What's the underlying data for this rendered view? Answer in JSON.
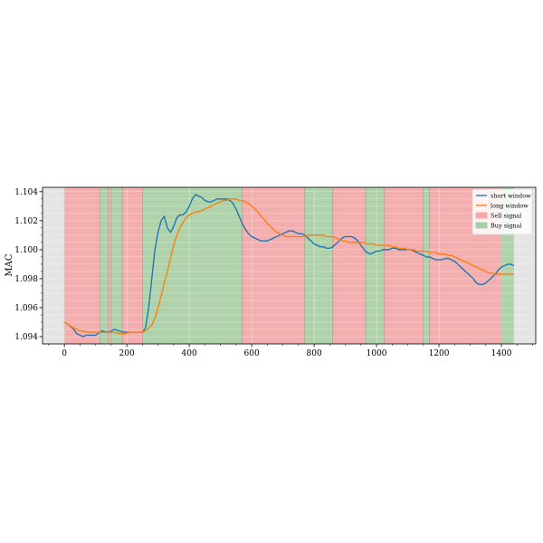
{
  "chart_data": {
    "type": "line",
    "title": "",
    "xlabel": "",
    "ylabel": "MAC",
    "xlim": [
      -70,
      1510
    ],
    "ylim": [
      1.0935,
      1.1043
    ],
    "xticks": [
      0,
      200,
      400,
      600,
      800,
      1000,
      1200,
      1400
    ],
    "yticks": [
      1.094,
      1.096,
      1.098,
      1.1,
      1.102,
      1.104
    ],
    "ytick_labels": [
      "1.094",
      "1.096",
      "1.098",
      "1.100",
      "1.102",
      "1.104"
    ],
    "grid": true,
    "background": "#e5e5e5",
    "data_extent": [
      0,
      1440
    ],
    "legend": {
      "placement": "top-right",
      "entries": [
        {
          "label": "short window",
          "kind": "line",
          "color": "#1f77b4"
        },
        {
          "label": "long window",
          "kind": "line",
          "color": "#ff7f0e"
        },
        {
          "label": "Sell signal",
          "kind": "patch",
          "color": "#f4a9a8"
        },
        {
          "label": "Buy signal",
          "kind": "patch",
          "color": "#a9cfa4"
        }
      ]
    },
    "signal_colors": {
      "sell": "#f4a9a8",
      "buy": "#a9cfa4"
    },
    "signal_regions": [
      {
        "type": "sell",
        "start": 0,
        "end": 115
      },
      {
        "type": "buy",
        "start": 115,
        "end": 140
      },
      {
        "type": "sell",
        "start": 140,
        "end": 150
      },
      {
        "type": "buy",
        "start": 150,
        "end": 185
      },
      {
        "type": "sell",
        "start": 185,
        "end": 250
      },
      {
        "type": "buy",
        "start": 250,
        "end": 570
      },
      {
        "type": "sell",
        "start": 570,
        "end": 770
      },
      {
        "type": "buy",
        "start": 770,
        "end": 860
      },
      {
        "type": "sell",
        "start": 860,
        "end": 965
      },
      {
        "type": "buy",
        "start": 965,
        "end": 1025
      },
      {
        "type": "sell",
        "start": 1025,
        "end": 1150
      },
      {
        "type": "buy",
        "start": 1150,
        "end": 1170
      },
      {
        "type": "sell",
        "start": 1170,
        "end": 1400
      },
      {
        "type": "buy",
        "start": 1400,
        "end": 1440
      }
    ],
    "series": [
      {
        "name": "short window",
        "color": "#1f77b4",
        "x": [
          0,
          15,
          30,
          40,
          50,
          60,
          70,
          80,
          100,
          120,
          140,
          150,
          160,
          175,
          190,
          210,
          230,
          250,
          260,
          270,
          280,
          290,
          300,
          310,
          320,
          330,
          340,
          350,
          360,
          370,
          380,
          390,
          400,
          410,
          420,
          430,
          440,
          450,
          460,
          470,
          480,
          490,
          500,
          510,
          520,
          530,
          540,
          550,
          560,
          570,
          580,
          590,
          600,
          610,
          620,
          630,
          640,
          650,
          660,
          670,
          680,
          690,
          700,
          710,
          720,
          730,
          740,
          750,
          760,
          770,
          780,
          790,
          800,
          810,
          820,
          830,
          840,
          850,
          860,
          870,
          880,
          890,
          900,
          910,
          920,
          930,
          940,
          950,
          960,
          970,
          980,
          990,
          1000,
          1010,
          1020,
          1030,
          1040,
          1050,
          1060,
          1070,
          1080,
          1090,
          1100,
          1110,
          1120,
          1130,
          1140,
          1150,
          1160,
          1170,
          1180,
          1190,
          1200,
          1210,
          1220,
          1230,
          1240,
          1250,
          1260,
          1270,
          1280,
          1290,
          1300,
          1310,
          1320,
          1330,
          1340,
          1350,
          1360,
          1370,
          1380,
          1390,
          1400,
          1410,
          1420,
          1430,
          1440
        ],
        "values": [
          1.095,
          1.0948,
          1.0945,
          1.0942,
          1.0941,
          1.094,
          1.0941,
          1.0941,
          1.0941,
          1.0944,
          1.0943,
          1.0944,
          1.0945,
          1.0944,
          1.0943,
          1.0943,
          1.0943,
          1.0943,
          1.0946,
          1.096,
          1.098,
          1.1,
          1.1012,
          1.102,
          1.1023,
          1.1015,
          1.1012,
          1.1016,
          1.1022,
          1.1024,
          1.1024,
          1.1026,
          1.103,
          1.1035,
          1.1038,
          1.1037,
          1.1036,
          1.1034,
          1.1033,
          1.1033,
          1.1034,
          1.1035,
          1.1035,
          1.1035,
          1.1035,
          1.1034,
          1.1032,
          1.1028,
          1.1023,
          1.1018,
          1.1014,
          1.1011,
          1.1009,
          1.1008,
          1.1007,
          1.1006,
          1.1006,
          1.1006,
          1.1007,
          1.1008,
          1.1009,
          1.101,
          1.1011,
          1.1012,
          1.1013,
          1.1013,
          1.1012,
          1.1011,
          1.1011,
          1.101,
          1.1008,
          1.1006,
          1.1004,
          1.1003,
          1.1002,
          1.1002,
          1.1001,
          1.1001,
          1.1002,
          1.1004,
          1.1006,
          1.1008,
          1.1009,
          1.1009,
          1.1009,
          1.1008,
          1.1006,
          1.1003,
          1.1,
          1.0998,
          1.0997,
          1.0998,
          1.0999,
          1.0999,
          1.1,
          1.1,
          1.1,
          1.1001,
          1.1001,
          1.1,
          1.1,
          1.1,
          1.1,
          1.1,
          1.0999,
          1.0998,
          1.0997,
          1.0996,
          1.0995,
          1.0995,
          1.0994,
          1.0993,
          1.0993,
          1.0993,
          1.0994,
          1.0994,
          1.0993,
          1.0992,
          1.099,
          1.0988,
          1.0986,
          1.0984,
          1.0982,
          1.098,
          1.0977,
          1.0976,
          1.0976,
          1.0977,
          1.0979,
          1.0981,
          1.0983,
          1.0986,
          1.0988,
          1.0989,
          1.099,
          1.099,
          1.0989
        ]
      },
      {
        "name": "long window",
        "color": "#ff7f0e",
        "x": [
          0,
          15,
          30,
          40,
          50,
          60,
          70,
          80,
          100,
          120,
          140,
          150,
          160,
          175,
          190,
          210,
          230,
          250,
          260,
          270,
          280,
          290,
          300,
          310,
          320,
          330,
          340,
          350,
          360,
          370,
          380,
          390,
          400,
          410,
          420,
          430,
          440,
          450,
          460,
          470,
          480,
          490,
          500,
          510,
          520,
          530,
          540,
          550,
          560,
          570,
          580,
          590,
          600,
          610,
          620,
          630,
          640,
          650,
          660,
          670,
          680,
          690,
          700,
          710,
          720,
          730,
          740,
          750,
          760,
          770,
          780,
          790,
          800,
          810,
          820,
          830,
          840,
          850,
          860,
          870,
          880,
          890,
          900,
          910,
          920,
          930,
          940,
          950,
          960,
          970,
          980,
          990,
          1000,
          1010,
          1020,
          1030,
          1040,
          1050,
          1060,
          1070,
          1080,
          1090,
          1100,
          1110,
          1120,
          1130,
          1140,
          1150,
          1160,
          1170,
          1180,
          1190,
          1200,
          1210,
          1220,
          1230,
          1240,
          1250,
          1260,
          1270,
          1280,
          1290,
          1300,
          1310,
          1320,
          1330,
          1340,
          1350,
          1360,
          1370,
          1380,
          1390,
          1400,
          1410,
          1420,
          1430,
          1440
        ],
        "values": [
          1.095,
          1.0948,
          1.0946,
          1.0945,
          1.0944,
          1.0944,
          1.0943,
          1.0943,
          1.0943,
          1.0943,
          1.0943,
          1.0943,
          1.0943,
          1.0942,
          1.0942,
          1.0943,
          1.0943,
          1.0943,
          1.0944,
          1.0946,
          1.0948,
          1.0953,
          1.096,
          1.0968,
          1.0977,
          1.0985,
          1.0994,
          1.1003,
          1.101,
          1.1015,
          1.1019,
          1.1022,
          1.1024,
          1.1025,
          1.1026,
          1.1026,
          1.1027,
          1.1028,
          1.1029,
          1.103,
          1.1031,
          1.1032,
          1.1033,
          1.1034,
          1.1034,
          1.1035,
          1.1035,
          1.1035,
          1.1034,
          1.1034,
          1.1033,
          1.1032,
          1.103,
          1.1028,
          1.1026,
          1.1023,
          1.1021,
          1.1018,
          1.1016,
          1.1014,
          1.1012,
          1.1011,
          1.101,
          1.1009,
          1.1009,
          1.1009,
          1.1009,
          1.1009,
          1.1009,
          1.1009,
          1.101,
          1.101,
          1.101,
          1.101,
          1.101,
          1.101,
          1.1009,
          1.1009,
          1.1009,
          1.1008,
          1.1007,
          1.1006,
          1.1006,
          1.1005,
          1.1005,
          1.1005,
          1.1005,
          1.1005,
          1.1005,
          1.1004,
          1.1004,
          1.1004,
          1.1003,
          1.1003,
          1.1003,
          1.1003,
          1.1003,
          1.1002,
          1.1002,
          1.1001,
          1.1001,
          1.1001,
          1.1,
          1.1,
          1.1,
          1.0999,
          1.0999,
          1.0999,
          1.0999,
          1.0998,
          1.0998,
          1.0998,
          1.0997,
          1.0997,
          1.0997,
          1.0996,
          1.0996,
          1.0995,
          1.0994,
          1.0993,
          1.0992,
          1.0991,
          1.099,
          1.0989,
          1.0988,
          1.0987,
          1.0986,
          1.0985,
          1.0984,
          1.0984,
          1.0983,
          1.0983,
          1.0983,
          1.0983,
          1.0983,
          1.0983,
          1.0983
        ]
      }
    ]
  }
}
